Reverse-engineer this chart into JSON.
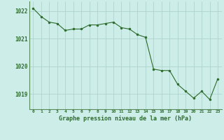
{
  "x": [
    0,
    1,
    2,
    3,
    4,
    5,
    6,
    7,
    8,
    9,
    10,
    11,
    12,
    13,
    14,
    15,
    16,
    17,
    18,
    19,
    20,
    21,
    22,
    23
  ],
  "y": [
    1022.1,
    1021.8,
    1021.6,
    1021.55,
    1021.3,
    1021.35,
    1021.35,
    1021.5,
    1021.5,
    1021.55,
    1021.6,
    1021.4,
    1021.35,
    1021.15,
    1021.05,
    1019.9,
    1019.85,
    1019.85,
    1019.35,
    1019.1,
    1018.85,
    1019.1,
    1018.8,
    1019.55
  ],
  "line_color": "#2d6a2d",
  "marker_color": "#2d6a2d",
  "bg_color": "#cdeee8",
  "grid_color": "#a8cfc8",
  "axis_label_color": "#2d6a2d",
  "tick_color": "#2d6a2d",
  "ylabel_ticks": [
    1019,
    1020,
    1021,
    1022
  ],
  "xlabel": "Graphe pression niveau de la mer (hPa)",
  "ylim": [
    1018.45,
    1022.35
  ],
  "xlim": [
    -0.5,
    23.5
  ],
  "figwidth": 3.2,
  "figheight": 2.0,
  "dpi": 100
}
